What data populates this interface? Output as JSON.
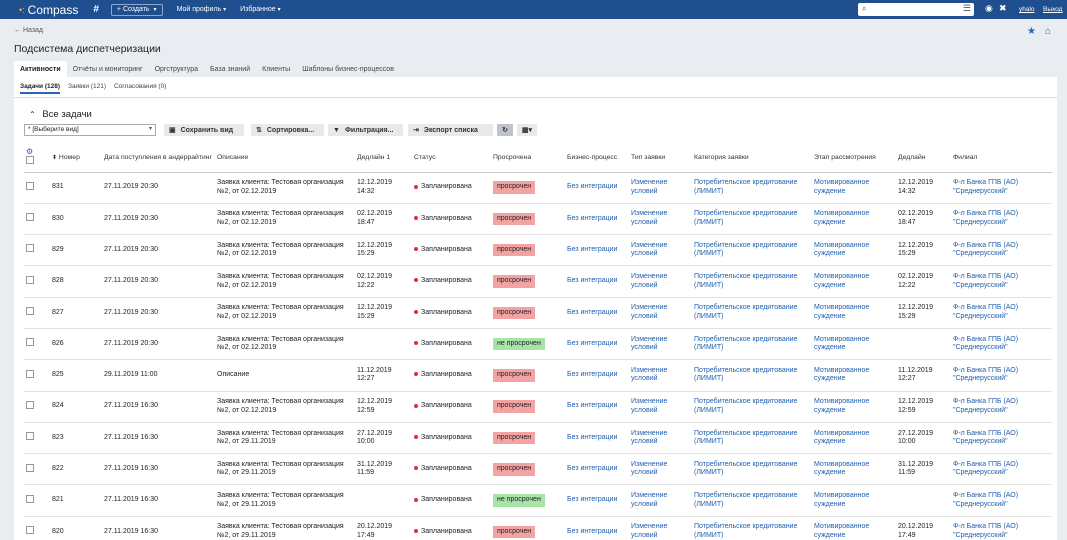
{
  "topbar": {
    "brand": "Compass",
    "create_label": "+ Создать",
    "menu": [
      "Мой профиль",
      "Избранное"
    ],
    "user": "yhalo",
    "logout": "Выход"
  },
  "header": {
    "back": "Назад",
    "title": "Подсистема диспетчеризации",
    "tabs": [
      "Активности",
      "Отчёты и мониторинг",
      "Оргструктура",
      "База знаний",
      "Клиенты",
      "Шаблоны бизнес-процессов"
    ]
  },
  "subtabs": [
    "Задачи (128)",
    "Заявки (121)",
    "Согласования (0)"
  ],
  "section_title": "Все задачи",
  "toolbar": {
    "view_select": "* [Выберите вид]",
    "save": "Сохранить вид",
    "sort": "Сортировка...",
    "filter": "Фильтрация...",
    "export": "Экспорт списка"
  },
  "columns": [
    "Номер",
    "Дата поступления в андеррайтинг",
    "Описание",
    "Дедлайн 1",
    "Статус",
    "Просрочена",
    "Бизнес-процесс",
    "Тип заявки",
    "Категория заявки",
    "Этап рассмотрения",
    "Дедлайн",
    "Филиал"
  ],
  "rows": [
    {
      "num": "831",
      "date": "27.11.2019 20:30",
      "desc": "Заявка клиента: Тестовая организация №2, от 02.12.2019",
      "dl1": "12.12.2019 14:32",
      "status": "Запланирована",
      "overdue": "просрочен",
      "proc": "Без интеграции",
      "type": "Изменение условий",
      "cat": "Потребительское кредитование (ЛИМИТ)",
      "stage": "Мотивированное суждение",
      "dl": "12.12.2019 14:32",
      "branch": "Ф-л Банка ГПБ (АО) \"Среднерусский\""
    },
    {
      "num": "830",
      "date": "27.11.2019 20:30",
      "desc": "Заявка клиента: Тестовая организация №2, от 02.12.2019",
      "dl1": "02.12.2019 18:47",
      "status": "Запланирована",
      "overdue": "просрочен",
      "proc": "Без интеграции",
      "type": "Изменение условий",
      "cat": "Потребительское кредитование (ЛИМИТ)",
      "stage": "Мотивированное суждение",
      "dl": "02.12.2019 18:47",
      "branch": "Ф-л Банка ГПБ (АО) \"Среднерусский\""
    },
    {
      "num": "829",
      "date": "27.11.2019 20:30",
      "desc": "Заявка клиента: Тестовая организация №2, от 02.12.2019",
      "dl1": "12.12.2019 15:29",
      "status": "Запланирована",
      "overdue": "просрочен",
      "proc": "Без интеграции",
      "type": "Изменение условий",
      "cat": "Потребительское кредитование (ЛИМИТ)",
      "stage": "Мотивированное суждение",
      "dl": "12.12.2019 15:29",
      "branch": "Ф-л Банка ГПБ (АО) \"Среднерусский\""
    },
    {
      "num": "828",
      "date": "27.11.2019 20:30",
      "desc": "Заявка клиента: Тестовая организация №2, от 02.12.2019",
      "dl1": "02.12.2019 12:22",
      "status": "Запланирована",
      "overdue": "просрочен",
      "proc": "Без интеграции",
      "type": "Изменение условий",
      "cat": "Потребительское кредитование (ЛИМИТ)",
      "stage": "Мотивированное суждение",
      "dl": "02.12.2019 12:22",
      "branch": "Ф-л Банка ГПБ (АО) \"Среднерусский\""
    },
    {
      "num": "827",
      "date": "27.11.2019 20:30",
      "desc": "Заявка клиента: Тестовая организация №2, от 02.12.2019",
      "dl1": "12.12.2019 15:29",
      "status": "Запланирована",
      "overdue": "просрочен",
      "proc": "Без интеграции",
      "type": "Изменение условий",
      "cat": "Потребительское кредитование (ЛИМИТ)",
      "stage": "Мотивированное суждение",
      "dl": "12.12.2019 15:29",
      "branch": "Ф-л Банка ГПБ (АО) \"Среднерусский\""
    },
    {
      "num": "826",
      "date": "27.11.2019 20:30",
      "desc": "Заявка клиента: Тестовая организация №2, от 02.12.2019",
      "dl1": "",
      "status": "Запланирована",
      "overdue": "не просрочен",
      "proc": "Без интеграции",
      "type": "Изменение условий",
      "cat": "Потребительское кредитование (ЛИМИТ)",
      "stage": "Мотивированное суждение",
      "dl": "",
      "branch": "Ф-л Банка ГПБ (АО) \"Среднерусский\""
    },
    {
      "num": "825",
      "date": "29.11.2019 11:00",
      "desc": "Описание",
      "dl1": "11.12.2019 12:27",
      "status": "Запланирована",
      "overdue": "просрочен",
      "proc": "Без интеграции",
      "type": "Изменение условий",
      "cat": "Потребительское кредитование (ЛИМИТ)",
      "stage": "Мотивированное суждение",
      "dl": "11.12.2019 12:27",
      "branch": "Ф-л Банка ГПБ (АО) \"Среднерусский\""
    },
    {
      "num": "824",
      "date": "27.11.2019 16:30",
      "desc": "Заявка клиента: Тестовая организация №2, от 02.12.2019",
      "dl1": "12.12.2019 12:59",
      "status": "Запланирована",
      "overdue": "просрочен",
      "proc": "Без интеграции",
      "type": "Изменение условий",
      "cat": "Потребительское кредитование (ЛИМИТ)",
      "stage": "Мотивированное суждение",
      "dl": "12.12.2019 12:59",
      "branch": "Ф-л Банка ГПБ (АО) \"Среднерусский\""
    },
    {
      "num": "823",
      "date": "27.11.2019 16:30",
      "desc": "Заявка клиента: Тестовая организация №2, от 29.11.2019",
      "dl1": "27.12.2019 10:00",
      "status": "Запланирована",
      "overdue": "просрочен",
      "proc": "Без интеграции",
      "type": "Изменение условий",
      "cat": "Потребительское кредитование (ЛИМИТ)",
      "stage": "Мотивированное суждение",
      "dl": "27.12.2019 10:00",
      "branch": "Ф-л Банка ГПБ (АО) \"Среднерусский\""
    },
    {
      "num": "822",
      "date": "27.11.2019 16:30",
      "desc": "Заявка клиента: Тестовая организация №2, от 29.11.2019",
      "dl1": "31.12.2019 11:59",
      "status": "Запланирована",
      "overdue": "просрочен",
      "proc": "Без интеграции",
      "type": "Изменение условий",
      "cat": "Потребительское кредитование (ЛИМИТ)",
      "stage": "Мотивированное суждение",
      "dl": "31.12.2019 11:59",
      "branch": "Ф-л Банка ГПБ (АО) \"Среднерусский\""
    },
    {
      "num": "821",
      "date": "27.11.2019 16:30",
      "desc": "Заявка клиента: Тестовая организация №2, от 29.11.2019",
      "dl1": "",
      "status": "Запланирована",
      "overdue": "не просрочен",
      "proc": "Без интеграции",
      "type": "Изменение условий",
      "cat": "Потребительское кредитование (ЛИМИТ)",
      "stage": "Мотивированное суждение",
      "dl": "",
      "branch": "Ф-л Банка ГПБ (АО) \"Среднерусский\""
    },
    {
      "num": "820",
      "date": "27.11.2019 16:30",
      "desc": "Заявка клиента: Тестовая организация №2, от 29.11.2019",
      "dl1": "20.12.2019 17:49",
      "status": "Запланирована",
      "overdue": "просрочен",
      "proc": "Без интеграции",
      "type": "Изменение условий",
      "cat": "Потребительское кредитование (ЛИМИТ)",
      "stage": "Мотивированное суждение",
      "dl": "20.12.2019 17:49",
      "branch": "Ф-л Банка ГПБ (АО) \"Среднерусский\""
    }
  ]
}
